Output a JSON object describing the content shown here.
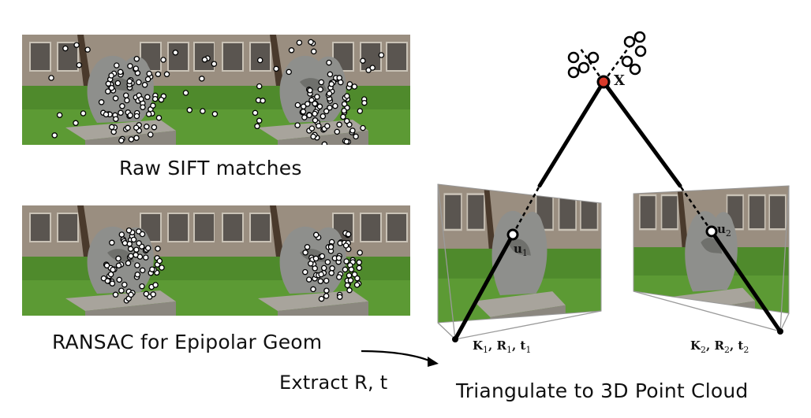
{
  "labels": {
    "raw_sift": "Raw SIFT matches",
    "ransac": "RANSAC for Epipolar Geom",
    "extract": "Extract R, t",
    "triangulate": "Triangulate to 3D Point Cloud"
  },
  "math": {
    "point_x": "X",
    "u1_base": "u",
    "u1_sub": "1",
    "u2_base": "u",
    "u2_sub": "2",
    "cam1": "K",
    "cam1_sub1": "1",
    "cam1_r": ", R",
    "cam1_sub2": "1",
    "cam1_t": ", t",
    "cam1_sub3": "1",
    "cam2": "K",
    "cam2_sub1": "2",
    "cam2_r": ", R",
    "cam2_sub2": "2",
    "cam2_t": ", t",
    "cam2_sub3": "2"
  },
  "panels": {
    "raw_matches_left": "matched-keypoints-left",
    "raw_matches_right": "matched-keypoints-right",
    "ransac_matches_left": "inlier-keypoints-left",
    "ransac_matches_right": "inlier-keypoints-right"
  },
  "colors": {
    "grass": "#4f8a2c",
    "building": "#8a7f74",
    "statue": "#8e8f8c",
    "point_x": "#d93a2a",
    "rays": "#000000"
  }
}
